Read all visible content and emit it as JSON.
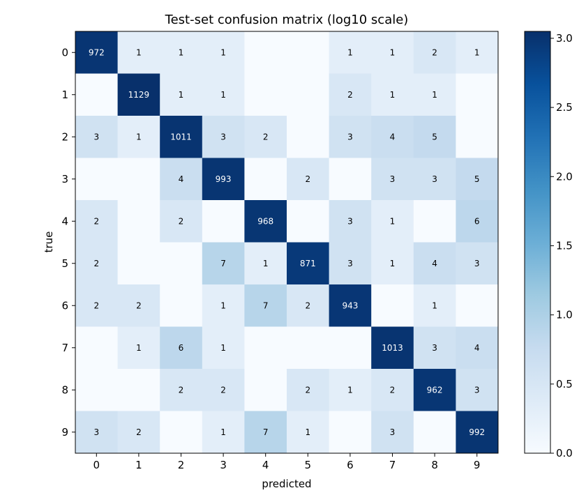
{
  "chart_data": {
    "type": "heatmap",
    "title": "Test-set confusion matrix (log10 scale)",
    "xlabel": "predicted",
    "ylabel": "true",
    "x_categories": [
      "0",
      "1",
      "2",
      "3",
      "4",
      "5",
      "6",
      "7",
      "8",
      "9"
    ],
    "y_categories": [
      "0",
      "1",
      "2",
      "3",
      "4",
      "5",
      "6",
      "7",
      "8",
      "9"
    ],
    "matrix": [
      [
        972,
        1,
        1,
        1,
        0,
        0,
        1,
        1,
        2,
        1
      ],
      [
        0,
        1129,
        1,
        1,
        0,
        0,
        2,
        1,
        1,
        0
      ],
      [
        3,
        1,
        1011,
        3,
        2,
        0,
        3,
        4,
        5,
        0
      ],
      [
        0,
        0,
        4,
        993,
        0,
        2,
        0,
        3,
        3,
        5
      ],
      [
        2,
        0,
        2,
        0,
        968,
        0,
        3,
        1,
        0,
        6
      ],
      [
        2,
        0,
        0,
        7,
        1,
        871,
        3,
        1,
        4,
        3
      ],
      [
        2,
        2,
        0,
        1,
        7,
        2,
        943,
        0,
        1,
        0
      ],
      [
        0,
        1,
        6,
        1,
        0,
        0,
        0,
        1013,
        3,
        4
      ],
      [
        0,
        0,
        2,
        2,
        0,
        2,
        1,
        2,
        962,
        3
      ],
      [
        3,
        2,
        0,
        1,
        7,
        1,
        0,
        3,
        0,
        992
      ]
    ],
    "colorbar": {
      "range": [
        0,
        3.05
      ],
      "ticks": [
        "0.0",
        "0.5",
        "1.0",
        "1.5",
        "2.0",
        "2.5",
        "3.0"
      ],
      "colormap": "Blues"
    },
    "grid": false
  }
}
